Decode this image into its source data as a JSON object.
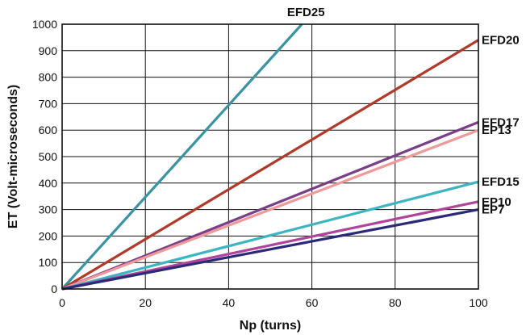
{
  "chart_data": {
    "type": "line",
    "xlabel": "Np (turns)",
    "ylabel": "ET (Volt-microseconds)",
    "xlim": [
      0,
      100
    ],
    "ylim": [
      0,
      1000
    ],
    "x_ticks": [
      0,
      20,
      40,
      60,
      80,
      100
    ],
    "y_ticks": [
      0,
      100,
      200,
      300,
      400,
      500,
      600,
      700,
      800,
      900,
      1000
    ],
    "x_tick_labels": [
      "0",
      "20",
      "40",
      "60",
      "80",
      "100"
    ],
    "y_tick_labels": [
      "0",
      "100",
      "200",
      "300",
      "400",
      "500",
      "600",
      "700",
      "800",
      "900",
      "1000"
    ],
    "grid": true,
    "series": [
      {
        "name": "EFD25",
        "color": "#3a93a0",
        "x": [
          0,
          57.6
        ],
        "y": [
          0,
          1000
        ],
        "label_position": "top"
      },
      {
        "name": "EFD20",
        "color": "#b03a2a",
        "x": [
          0,
          100
        ],
        "y": [
          0,
          940
        ],
        "label_position": "right"
      },
      {
        "name": "EFD17",
        "color": "#7b3f87",
        "x": [
          0,
          100
        ],
        "y": [
          0,
          630
        ],
        "label_position": "right"
      },
      {
        "name": "EP13",
        "color": "#ef9a9a",
        "x": [
          0,
          100
        ],
        "y": [
          0,
          600
        ],
        "label_position": "right"
      },
      {
        "name": "EFD15",
        "color": "#3bb5c0",
        "x": [
          0,
          100
        ],
        "y": [
          0,
          405
        ],
        "label_position": "right"
      },
      {
        "name": "EP10",
        "color": "#b0449a",
        "x": [
          0,
          100
        ],
        "y": [
          0,
          330
        ],
        "label_position": "right"
      },
      {
        "name": "EP7",
        "color": "#2b2a7a",
        "x": [
          0,
          100
        ],
        "y": [
          0,
          300
        ],
        "label_position": "right"
      }
    ]
  }
}
